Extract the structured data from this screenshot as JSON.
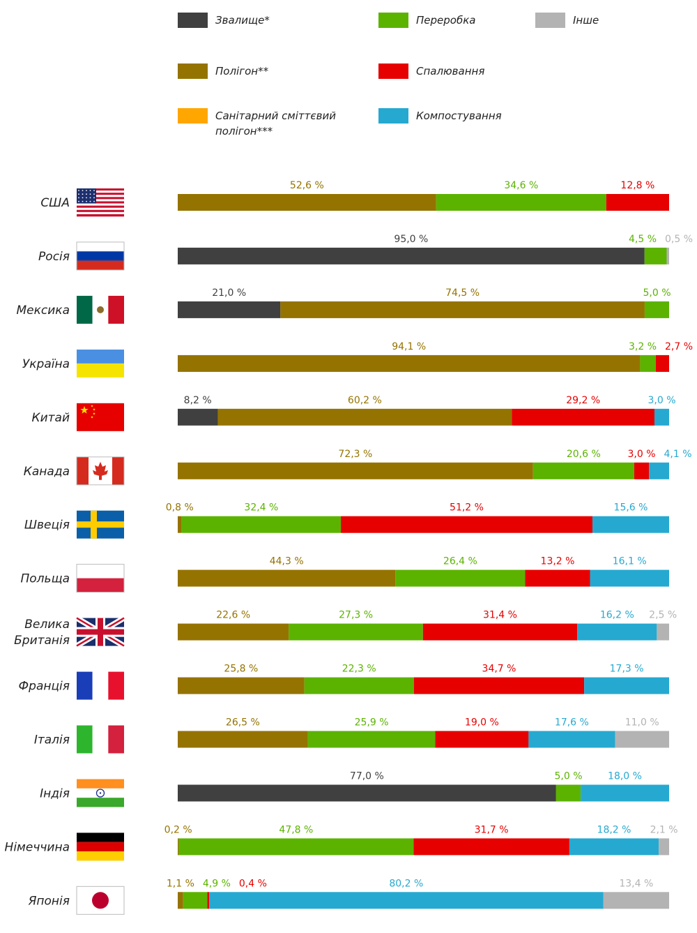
{
  "chart_data": {
    "type": "bar",
    "stacked": true,
    "orientation": "horizontal",
    "unit": "%",
    "legend_placement": "top",
    "categories": [
      "Звалище*",
      "Полігон**",
      "Санітарний сміттєвий полігон***",
      "Переробка",
      "Спалювання",
      "Компостування",
      "Інше"
    ],
    "category_colors": {
      "Звалище*": "#404040",
      "Полігон**": "#957300",
      "Санітарний сміттєвий полігон***": "#ffa600",
      "Переробка": "#5bb300",
      "Спалювання": "#e60000",
      "Компостування": "#26a9d0",
      "Інше": "#b3b3b3"
    },
    "legend": [
      [
        "Звалище*"
      ],
      [
        "Полігон**"
      ],
      [
        "Санітарний сміттєвий",
        "полігон***"
      ],
      [
        "Переробка"
      ],
      [
        "Спалювання"
      ],
      [
        "Компостування"
      ],
      [
        "Інше"
      ]
    ],
    "countries": [
      {
        "name": [
          "США"
        ],
        "flag": "usa",
        "segments": [
          {
            "category": "Полігон**",
            "value": 52.6,
            "label": "52,6 %"
          },
          {
            "category": "Переробка",
            "value": 34.6,
            "label": "34,6 %"
          },
          {
            "category": "Спалювання",
            "value": 12.8,
            "label": "12,8 %"
          }
        ]
      },
      {
        "name": [
          "Росія"
        ],
        "flag": "russia",
        "segments": [
          {
            "category": "Звалище*",
            "value": 95.0,
            "label": "95,0 %"
          },
          {
            "category": "Переробка",
            "value": 4.5,
            "label": "4,5 %"
          },
          {
            "category": "Інше",
            "value": 0.5,
            "label": "0,5 %"
          }
        ]
      },
      {
        "name": [
          "Мексика"
        ],
        "flag": "mexico",
        "segments": [
          {
            "category": "Звалище*",
            "value": 21.0,
            "label": "21,0 %"
          },
          {
            "category": "Полігон**",
            "value": 74.5,
            "label": "74,5 %"
          },
          {
            "category": "Переробка",
            "value": 5.0,
            "label": "5,0 %"
          }
        ]
      },
      {
        "name": [
          "Україна"
        ],
        "flag": "ukraine",
        "segments": [
          {
            "category": "Полігон**",
            "value": 94.1,
            "label": "94,1 %"
          },
          {
            "category": "Переробка",
            "value": 3.2,
            "label": "3,2 %"
          },
          {
            "category": "Спалювання",
            "value": 2.7,
            "label": "2,7 %"
          }
        ]
      },
      {
        "name": [
          "Китай"
        ],
        "flag": "china",
        "segments": [
          {
            "category": "Звалище*",
            "value": 8.2,
            "label": "8,2 %"
          },
          {
            "category": "Полігон**",
            "value": 60.2,
            "label": "60,2 %"
          },
          {
            "category": "Спалювання",
            "value": 29.2,
            "label": "29,2 %"
          },
          {
            "category": "Компостування",
            "value": 3.0,
            "label": "3,0 %"
          }
        ]
      },
      {
        "name": [
          "Канада"
        ],
        "flag": "canada",
        "segments": [
          {
            "category": "Полігон**",
            "value": 72.3,
            "label": "72,3 %"
          },
          {
            "category": "Переробка",
            "value": 20.6,
            "label": "20,6 %"
          },
          {
            "category": "Спалювання",
            "value": 3.0,
            "label": "3,0 %"
          },
          {
            "category": "Компостування",
            "value": 4.1,
            "label": "4,1 %"
          }
        ]
      },
      {
        "name": [
          "Швеція"
        ],
        "flag": "sweden",
        "segments": [
          {
            "category": "Полігон**",
            "value": 0.8,
            "label": "0,8 %"
          },
          {
            "category": "Переробка",
            "value": 32.4,
            "label": "32,4 %"
          },
          {
            "category": "Спалювання",
            "value": 51.2,
            "label": "51,2 %"
          },
          {
            "category": "Компостування",
            "value": 15.6,
            "label": "15,6 %"
          }
        ]
      },
      {
        "name": [
          "Польща"
        ],
        "flag": "poland",
        "segments": [
          {
            "category": "Полігон**",
            "value": 44.3,
            "label": "44,3 %"
          },
          {
            "category": "Переробка",
            "value": 26.4,
            "label": "26,4 %"
          },
          {
            "category": "Спалювання",
            "value": 13.2,
            "label": "13,2 %"
          },
          {
            "category": "Компостування",
            "value": 16.1,
            "label": "16,1 %"
          }
        ]
      },
      {
        "name": [
          "Велика",
          "Британія"
        ],
        "flag": "uk",
        "segments": [
          {
            "category": "Полігон**",
            "value": 22.6,
            "label": "22,6 %"
          },
          {
            "category": "Переробка",
            "value": 27.3,
            "label": "27,3 %"
          },
          {
            "category": "Спалювання",
            "value": 31.4,
            "label": "31,4 %"
          },
          {
            "category": "Компостування",
            "value": 16.2,
            "label": "16,2 %"
          },
          {
            "category": "Інше",
            "value": 2.5,
            "label": "2,5 %"
          }
        ]
      },
      {
        "name": [
          "Франція"
        ],
        "flag": "france",
        "segments": [
          {
            "category": "Полігон**",
            "value": 25.8,
            "label": "25,8 %"
          },
          {
            "category": "Переробка",
            "value": 22.3,
            "label": "22,3 %"
          },
          {
            "category": "Спалювання",
            "value": 34.7,
            "label": "34,7 %"
          },
          {
            "category": "Компостування",
            "value": 17.3,
            "label": "17,3 %"
          }
        ]
      },
      {
        "name": [
          "Італія"
        ],
        "flag": "italy",
        "segments": [
          {
            "category": "Полігон**",
            "value": 26.5,
            "label": "26,5 %"
          },
          {
            "category": "Переробка",
            "value": 25.9,
            "label": "25,9 %"
          },
          {
            "category": "Спалювання",
            "value": 19.0,
            "label": "19,0 %"
          },
          {
            "category": "Компостування",
            "value": 17.6,
            "label": "17,6 %"
          },
          {
            "category": "Інше",
            "value": 11.0,
            "label": "11,0 %"
          }
        ]
      },
      {
        "name": [
          "Індія"
        ],
        "flag": "india",
        "segments": [
          {
            "category": "Звалище*",
            "value": 77.0,
            "label": "77,0 %"
          },
          {
            "category": "Переробка",
            "value": 5.0,
            "label": "5,0 %"
          },
          {
            "category": "Компостування",
            "value": 18.0,
            "label": "18,0 %"
          }
        ]
      },
      {
        "name": [
          "Німеччина"
        ],
        "flag": "germany",
        "segments": [
          {
            "category": "Полігон**",
            "value": 0.2,
            "label": "0,2 %"
          },
          {
            "category": "Переробка",
            "value": 47.8,
            "label": "47,8 %"
          },
          {
            "category": "Спалювання",
            "value": 31.7,
            "label": "31,7 %"
          },
          {
            "category": "Компостування",
            "value": 18.2,
            "label": "18,2 %"
          },
          {
            "category": "Інше",
            "value": 2.1,
            "label": "2,1 %"
          }
        ]
      },
      {
        "name": [
          "Японія"
        ],
        "flag": "japan",
        "segments": [
          {
            "category": "Полігон**",
            "value": 1.1,
            "label": "1,1 %"
          },
          {
            "category": "Переробка",
            "value": 4.9,
            "label": "4,9 %"
          },
          {
            "category": "Спалювання",
            "value": 0.4,
            "label": "0,4 %"
          },
          {
            "category": "Компостування",
            "value": 80.2,
            "label": "80,2 %"
          },
          {
            "category": "Інше",
            "value": 13.4,
            "label": "13,4 %"
          }
        ]
      }
    ]
  }
}
